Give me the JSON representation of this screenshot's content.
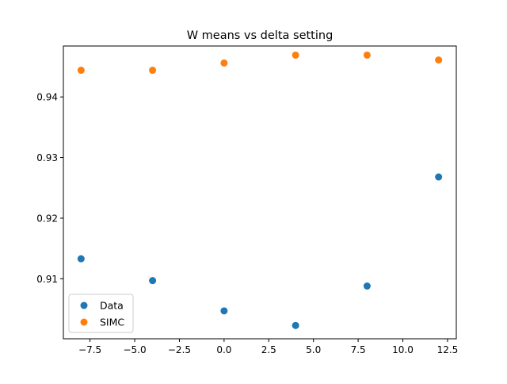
{
  "chart_data": {
    "type": "scatter",
    "title": "W means vs delta setting",
    "xlabel": "",
    "ylabel": "",
    "xlim": [
      -8.99,
      12.99
    ],
    "ylim": [
      0.9001,
      0.9484
    ],
    "x_ticks": [
      -7.5,
      -5.0,
      -2.5,
      0.0,
      2.5,
      5.0,
      7.5,
      10.0,
      12.5
    ],
    "x_tick_labels": [
      "−7.5",
      "−5.0",
      "−2.5",
      "0.0",
      "2.5",
      "5.0",
      "7.5",
      "10.0",
      "12.5"
    ],
    "y_ticks": [
      0.91,
      0.92,
      0.93,
      0.94
    ],
    "y_tick_labels": [
      "0.91",
      "0.92",
      "0.93",
      "0.94"
    ],
    "grid": false,
    "legend_position": "lower-left",
    "series": [
      {
        "name": "Data",
        "color": "#1f77b4",
        "x": [
          -8,
          -4,
          0,
          4,
          8,
          12
        ],
        "y": [
          0.9133,
          0.9097,
          0.9047,
          0.9023,
          0.9088,
          0.9268
        ]
      },
      {
        "name": "SIMC",
        "color": "#ff7f0e",
        "x": [
          -8,
          -4,
          0,
          4,
          8,
          12
        ],
        "y": [
          0.9444,
          0.9444,
          0.9456,
          0.9469,
          0.9469,
          0.9461
        ]
      }
    ]
  }
}
